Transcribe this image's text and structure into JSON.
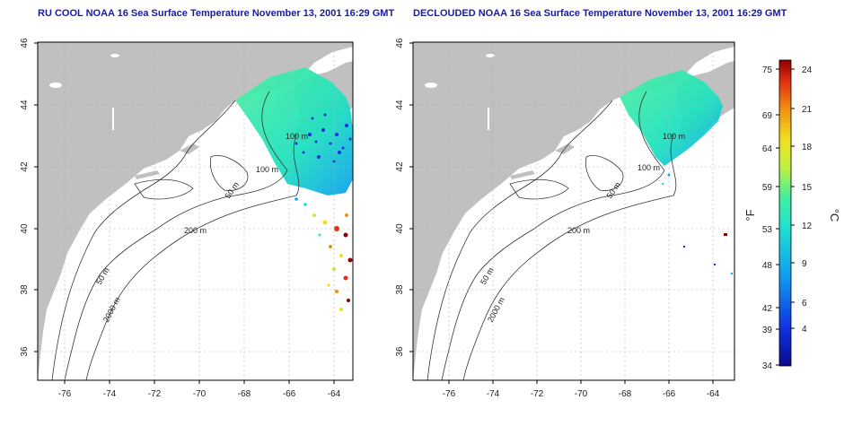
{
  "left_panel": {
    "title": "RU COOL NOAA 16 Sea Surface Temperature November 13, 2001 16:29 GMT",
    "contour_labels": [
      "100 m",
      "100 m",
      "50 m",
      "200 m",
      "50 m",
      "2000 m"
    ]
  },
  "right_panel": {
    "title": "DECLOUDED NOAA 16 Sea Surface Temperature November 13, 2001 16:29 GMT",
    "contour_labels": [
      "100 m",
      "100 m",
      "50 m",
      "200 m",
      "50 m",
      "2000 m"
    ]
  },
  "axes": {
    "x_ticks": [
      "-76",
      "-74",
      "-72",
      "-70",
      "-68",
      "-66",
      "-64"
    ],
    "y_ticks": [
      "46",
      "44",
      "42",
      "40",
      "38",
      "36"
    ],
    "x_range": [
      -77,
      -63
    ],
    "y_range": [
      35,
      46
    ]
  },
  "colorbar": {
    "f_ticks": [
      "75",
      "69",
      "64",
      "59",
      "53",
      "48",
      "42",
      "39",
      "34"
    ],
    "c_ticks": [
      "24",
      "21",
      "18",
      "15",
      "12",
      "9",
      "6",
      "4"
    ],
    "f_label": "°F",
    "c_label": "°C",
    "colors": [
      "#0a0a8c",
      "#1030e0",
      "#10a0f0",
      "#20e0d0",
      "#40f0a0",
      "#c0f040",
      "#f0e020",
      "#f09010",
      "#e03010",
      "#900000"
    ]
  },
  "colors": {
    "land": "#c0c0c0",
    "ocean": "#ffffff",
    "grid": "#b0b0b0",
    "title": "#1a1aa0"
  }
}
